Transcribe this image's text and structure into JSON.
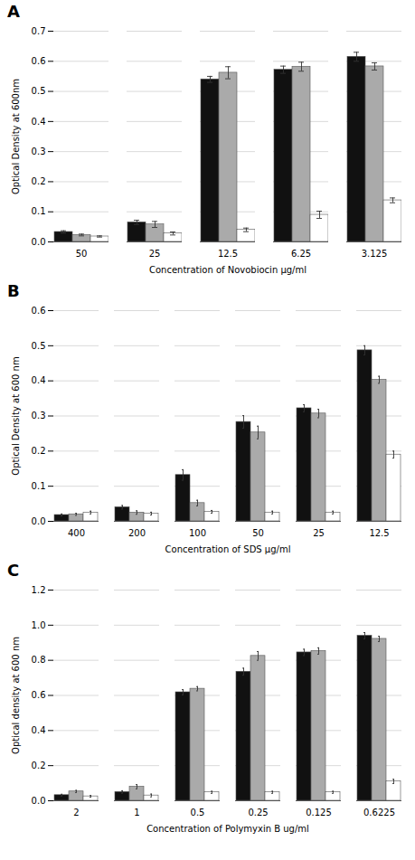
{
  "chart_data": [
    {
      "type": "bar",
      "title": "A",
      "xlabel": "Concentration of Novobiocin μg/ml",
      "ylabel": "Optical Density at 600nm",
      "categories": [
        "50",
        "25",
        "12.5",
        "6.25",
        "3.125"
      ],
      "series": [
        {
          "color": "#111111",
          "values": [
            0.033,
            0.065,
            0.54,
            0.572,
            0.615
          ],
          "errors": [
            0.004,
            0.007,
            0.01,
            0.012,
            0.015
          ]
        },
        {
          "color": "#aaaaaa",
          "values": [
            0.023,
            0.058,
            0.562,
            0.582,
            0.583
          ],
          "errors": [
            0.003,
            0.01,
            0.02,
            0.015,
            0.012
          ]
        },
        {
          "color": "#ffffff",
          "values": [
            0.018,
            0.028,
            0.04,
            0.09,
            0.138
          ],
          "errors": [
            0.002,
            0.005,
            0.006,
            0.012,
            0.008
          ]
        }
      ],
      "ylim": [
        0.0,
        0.7
      ],
      "yticks": [
        {
          "value": 0,
          "label": "0.0"
        },
        0.1,
        0.2,
        0.3,
        0.4,
        0.5,
        0.6,
        0.7
      ],
      "grid": true
    },
    {
      "type": "bar",
      "title": "B",
      "xlabel": "Concentration of SDS μg/ml",
      "ylabel": "Optical Density at 600 nm",
      "categories": [
        "400",
        "200",
        "100",
        "50",
        "25",
        "12.5"
      ],
      "series": [
        {
          "color": "#111111",
          "values": [
            0.018,
            0.04,
            0.132,
            0.283,
            0.322,
            0.487
          ],
          "errors": [
            0.003,
            0.005,
            0.015,
            0.018,
            0.01,
            0.013
          ]
        },
        {
          "color": "#aaaaaa",
          "values": [
            0.02,
            0.025,
            0.052,
            0.253,
            0.307,
            0.403
          ],
          "errors": [
            0.003,
            0.005,
            0.008,
            0.018,
            0.012,
            0.01
          ]
        },
        {
          "color": "#ffffff",
          "values": [
            0.025,
            0.022,
            0.027,
            0.025,
            0.025,
            0.19
          ],
          "errors": [
            0.004,
            0.004,
            0.004,
            0.004,
            0.004,
            0.01
          ]
        }
      ],
      "ylim": [
        0.0,
        0.6
      ],
      "yticks": [
        {
          "value": 0,
          "label": "0.0"
        },
        0.1,
        0.2,
        0.3,
        0.4,
        0.5,
        0.6
      ],
      "grid": true
    },
    {
      "type": "bar",
      "title": "C",
      "xlabel": "Concentration of Polymyxin B ug/ml",
      "ylabel": "Optical density at 600 nm",
      "categories": [
        "2",
        "1",
        "0.5",
        "0.25",
        "0.125",
        "0.6225"
      ],
      "series": [
        {
          "color": "#111111",
          "values": [
            0.032,
            0.05,
            0.618,
            0.735,
            0.845,
            0.94
          ],
          "errors": [
            0.005,
            0.007,
            0.015,
            0.02,
            0.018,
            0.018
          ]
        },
        {
          "color": "#aaaaaa",
          "values": [
            0.053,
            0.08,
            0.638,
            0.825,
            0.853,
            0.922
          ],
          "errors": [
            0.006,
            0.012,
            0.012,
            0.025,
            0.018,
            0.015
          ]
        },
        {
          "color": "#ffffff",
          "values": [
            0.025,
            0.03,
            0.048,
            0.048,
            0.048,
            0.11
          ],
          "errors": [
            0.005,
            0.008,
            0.006,
            0.006,
            0.006,
            0.012
          ]
        }
      ],
      "ylim": [
        0.0,
        1.2
      ],
      "yticks": [
        {
          "value": 0,
          "label": "0.0"
        },
        0.2,
        0.4,
        0.6,
        0.8,
        {
          "value": 1,
          "label": "1.0"
        },
        1.2
      ],
      "grid": true
    }
  ]
}
